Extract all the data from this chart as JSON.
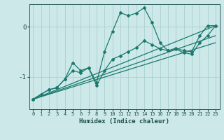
{
  "xlabel": "Humidex (Indice chaleur)",
  "bg_color": "#cce8e8",
  "line_color": "#1a7a6e",
  "grid_color": "#aacfcf",
  "axis_color": "#2a5a5a",
  "text_color": "#1a4a4a",
  "xlim": [
    -0.5,
    23.5
  ],
  "ylim": [
    -1.65,
    0.45
  ],
  "yticks": [
    0,
    -1
  ],
  "xticks": [
    0,
    1,
    2,
    3,
    4,
    5,
    6,
    7,
    8,
    9,
    10,
    11,
    12,
    13,
    14,
    15,
    16,
    17,
    18,
    19,
    20,
    21,
    22,
    23
  ],
  "curve1_x": [
    0,
    1,
    2,
    3,
    4,
    5,
    6,
    7,
    8,
    9,
    10,
    11,
    12,
    13,
    14,
    15,
    16,
    17,
    18,
    19,
    20,
    21,
    22,
    23
  ],
  "curve1_y": [
    -1.45,
    -1.35,
    -1.26,
    -1.22,
    -1.05,
    -0.72,
    -0.88,
    -0.82,
    -1.12,
    -0.5,
    -0.1,
    0.28,
    0.22,
    0.27,
    0.38,
    0.08,
    -0.32,
    -0.48,
    -0.43,
    -0.48,
    -0.5,
    -0.18,
    0.02,
    0.02
  ],
  "curve2_x": [
    0,
    2,
    3,
    4,
    5,
    6,
    7,
    8,
    9,
    10,
    11,
    12,
    13,
    14,
    15,
    16,
    17,
    18,
    19,
    20,
    21,
    22,
    23
  ],
  "curve2_y": [
    -1.45,
    -1.26,
    -1.22,
    -1.05,
    -0.88,
    -0.92,
    -0.82,
    -1.18,
    -0.88,
    -0.65,
    -0.58,
    -0.5,
    -0.42,
    -0.28,
    -0.36,
    -0.44,
    -0.48,
    -0.45,
    -0.52,
    -0.55,
    -0.32,
    -0.18,
    0.02
  ],
  "line3_x": [
    0,
    23
  ],
  "line3_y": [
    -1.45,
    0.02
  ],
  "line4_x": [
    0,
    23
  ],
  "line4_y": [
    -1.45,
    -0.18
  ],
  "line5_x": [
    0,
    23
  ],
  "line5_y": [
    -1.45,
    -0.32
  ]
}
